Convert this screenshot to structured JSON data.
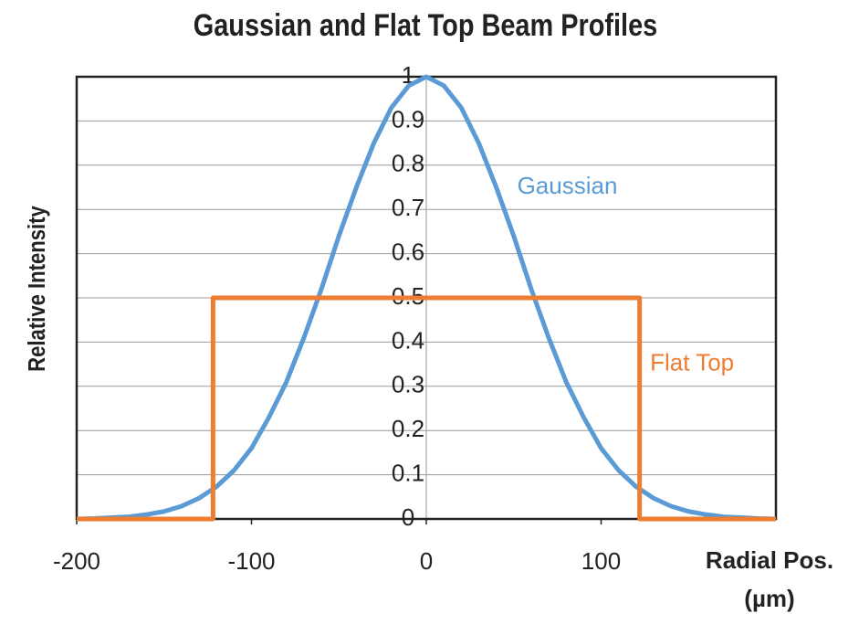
{
  "chart_data": {
    "type": "line",
    "title": "Gaussian and Flat Top Beam Profiles",
    "ylabel": "Relative Intensity",
    "xlabel": [
      "Radial Pos.",
      "(µm)"
    ],
    "xlim": [
      -200,
      200
    ],
    "xticks": [
      -200,
      -100,
      0,
      100
    ],
    "ylim": [
      0,
      1
    ],
    "yticks": [
      0,
      0.1,
      0.2,
      0.3,
      0.4,
      0.5,
      0.6,
      0.7,
      0.8,
      0.9,
      1
    ],
    "grid": true,
    "series": [
      {
        "name": "Gaussian",
        "color": "#5b9bd5",
        "x": [
          -200,
          -190,
          -180,
          -170,
          -160,
          -150,
          -140,
          -130,
          -120,
          -110,
          -100,
          -90,
          -80,
          -70,
          -60,
          -50,
          -40,
          -30,
          -20,
          -10,
          0,
          10,
          20,
          30,
          40,
          50,
          60,
          70,
          80,
          90,
          100,
          110,
          120,
          130,
          140,
          150,
          160,
          170,
          180,
          190,
          200
        ],
        "values": [
          0,
          0.001,
          0.003,
          0.005,
          0.01,
          0.017,
          0.029,
          0.047,
          0.073,
          0.11,
          0.16,
          0.23,
          0.31,
          0.41,
          0.52,
          0.64,
          0.75,
          0.85,
          0.93,
          0.98,
          1,
          0.98,
          0.93,
          0.85,
          0.75,
          0.64,
          0.52,
          0.41,
          0.31,
          0.23,
          0.16,
          0.11,
          0.073,
          0.047,
          0.029,
          0.017,
          0.01,
          0.005,
          0.003,
          0.001,
          0
        ]
      },
      {
        "name": "Flat Top",
        "color": "#ed7d31",
        "x": [
          -200,
          -122,
          -122,
          122,
          122,
          200
        ],
        "values": [
          0,
          0,
          0.5,
          0.5,
          0,
          0
        ]
      }
    ]
  }
}
